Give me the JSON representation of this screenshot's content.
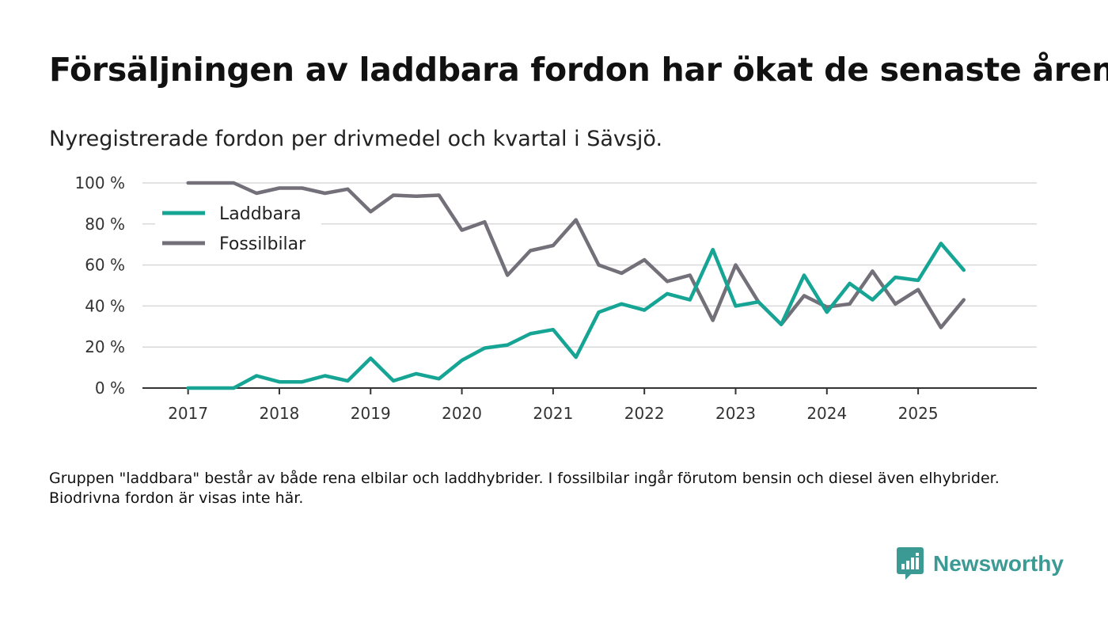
{
  "title": "Försäljningen av laddbara fordon har ökat de senaste åren",
  "subtitle": "Nyregistrerade fordon per drivmedel och kvartal i Sävsjö.",
  "footnote": "Gruppen \"laddbara\" består av både rena elbilar och laddhybrider. I fossilbilar ingår förutom bensin och diesel även elhybrider. Biodrivna fordon är visas inte här.",
  "brand": {
    "name": "Newsworthy",
    "icon": "newsworthy-logo-icon",
    "color": "#3c9a94"
  },
  "chart_data": {
    "type": "line",
    "title": "Försäljningen av laddbara fordon har ökat de senaste åren",
    "xlabel": "",
    "ylabel": "",
    "x": [
      2017.0,
      2017.25,
      2017.5,
      2017.75,
      2018.0,
      2018.25,
      2018.5,
      2018.75,
      2019.0,
      2019.25,
      2019.5,
      2019.75,
      2020.0,
      2020.25,
      2020.5,
      2020.75,
      2021.0,
      2021.25,
      2021.5,
      2021.75,
      2022.0,
      2022.25,
      2022.5,
      2022.75,
      2023.0,
      2023.25,
      2023.5,
      2023.75,
      2024.0,
      2024.25,
      2024.5,
      2024.75,
      2025.0,
      2025.25,
      2025.5
    ],
    "xticks": [
      2017,
      2018,
      2019,
      2020,
      2021,
      2022,
      2023,
      2024,
      2025
    ],
    "xlim": [
      2016.5,
      2026.3
    ],
    "ylim": [
      0,
      100
    ],
    "yticks": [
      0,
      20,
      40,
      60,
      80,
      100
    ],
    "ytick_suffix": " %",
    "grid": true,
    "legend_position": "top-left",
    "series": [
      {
        "name": "Laddbara",
        "color": "#16a595",
        "values": [
          0,
          0,
          0,
          6,
          3,
          3,
          6,
          3.5,
          14.5,
          3.5,
          7,
          4.5,
          13.5,
          19.5,
          21,
          26.5,
          28.5,
          15,
          37,
          41,
          38,
          46,
          43,
          67.5,
          40,
          42,
          31,
          55,
          37,
          51,
          43,
          54,
          52.5,
          70.5,
          57.5
        ]
      },
      {
        "name": "Fossilbilar",
        "color": "#737079",
        "values": [
          100,
          100,
          100,
          95,
          97.5,
          97.5,
          95,
          97,
          86,
          94,
          93.5,
          94,
          77,
          81,
          55,
          67,
          69.5,
          82,
          60,
          56,
          62.5,
          52,
          55,
          33,
          60,
          42,
          31,
          45,
          39.5,
          41,
          57,
          41,
          48,
          29.5,
          43
        ]
      }
    ]
  }
}
